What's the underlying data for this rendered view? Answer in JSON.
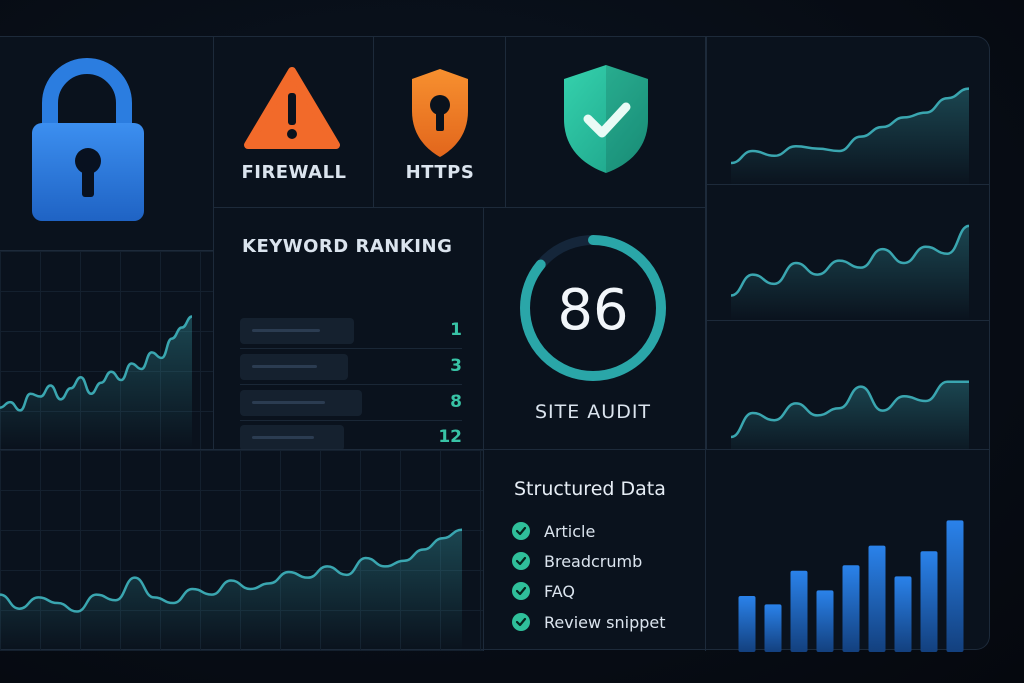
{
  "security": {
    "firewall_label": "FIREWALL",
    "https_label": "HTTPS"
  },
  "keyword_ranking": {
    "title": "KEYWORD RANKING",
    "ranks": [
      "1",
      "3",
      "8",
      "12"
    ]
  },
  "site_audit": {
    "score": "86",
    "score_value": 86,
    "label": "SITE AUDIT"
  },
  "structured_data": {
    "title": "Structured Data",
    "items": [
      "Article",
      "Breadcrumb",
      "FAQ",
      "Review snippet"
    ]
  },
  "colors": {
    "accent_teal": "#2fbf9a",
    "line_teal": "#3aa6b0",
    "bar_blue": "#1f6fd0",
    "warning_orange": "#f26a2a",
    "lock_blue": "#2b7de0"
  },
  "icons": [
    "lock-icon",
    "warning-icon",
    "keyhole-shield-icon",
    "check-shield-icon",
    "check-icon"
  ],
  "chart_data": [
    {
      "type": "area",
      "x": [
        0,
        1,
        2,
        3,
        4,
        5,
        6,
        7,
        8,
        9,
        10,
        11,
        12,
        13,
        14,
        15,
        16,
        17,
        18,
        19
      ],
      "values": [
        30,
        34,
        28,
        40,
        38,
        46,
        36,
        44,
        52,
        40,
        48,
        56,
        50,
        62,
        58,
        70,
        66,
        80,
        88,
        96
      ]
    },
    {
      "type": "area",
      "x": [
        0,
        1,
        2,
        3,
        4,
        5,
        6,
        7,
        8,
        9,
        10,
        11,
        12,
        13,
        14,
        15,
        16,
        17,
        18,
        19,
        20,
        21,
        22,
        23,
        24
      ],
      "values": [
        40,
        30,
        38,
        34,
        28,
        40,
        36,
        52,
        38,
        34,
        44,
        40,
        50,
        44,
        48,
        56,
        52,
        60,
        54,
        66,
        60,
        64,
        72,
        80,
        86
      ]
    },
    {
      "type": "area",
      "x": [
        0,
        1,
        2,
        3,
        4,
        5,
        6,
        7,
        8,
        9,
        10,
        11
      ],
      "values": [
        20,
        30,
        26,
        34,
        32,
        30,
        42,
        50,
        58,
        62,
        74,
        82
      ]
    },
    {
      "type": "area",
      "x": [
        0,
        1,
        2,
        3,
        4,
        5,
        6,
        7,
        8,
        9,
        10,
        11
      ],
      "values": [
        22,
        40,
        32,
        50,
        40,
        52,
        46,
        62,
        50,
        64,
        58,
        82
      ]
    },
    {
      "type": "area",
      "x": [
        0,
        1,
        2,
        3,
        4,
        5,
        6,
        7,
        8,
        9,
        10,
        11
      ],
      "values": [
        20,
        40,
        34,
        48,
        38,
        44,
        62,
        42,
        54,
        50,
        66,
        66
      ]
    },
    {
      "type": "bar",
      "categories": [
        "1",
        "2",
        "3",
        "4",
        "5",
        "6",
        "7",
        "8",
        "9"
      ],
      "values": [
        40,
        34,
        58,
        44,
        62,
        76,
        54,
        72,
        94
      ]
    }
  ]
}
